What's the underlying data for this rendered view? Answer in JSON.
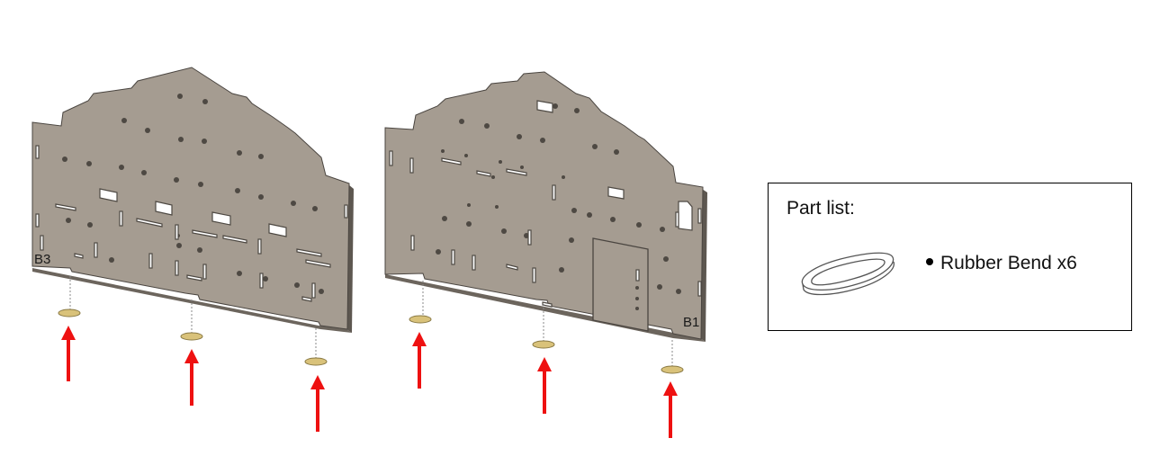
{
  "panels": [
    {
      "label": "B3"
    },
    {
      "label": "B1"
    }
  ],
  "part_list": {
    "title": "Part list:",
    "item": "Rubber Bend x6"
  },
  "colors": {
    "panel_face": "#a59c91",
    "panel_edge": "#5d5750",
    "rubber_band": "#d9c27a",
    "arrow": "#ee1111"
  }
}
